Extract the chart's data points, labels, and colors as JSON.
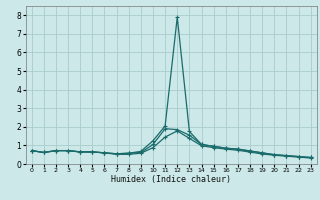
{
  "xlabel": "Humidex (Indice chaleur)",
  "bg_color": "#cce8e8",
  "grid_color": "#aacccc",
  "line_color": "#1a6b6b",
  "xlim": [
    -0.5,
    23.5
  ],
  "ylim": [
    0,
    8.5
  ],
  "xticks": [
    0,
    1,
    2,
    3,
    4,
    5,
    6,
    7,
    8,
    9,
    10,
    11,
    12,
    13,
    14,
    15,
    16,
    17,
    18,
    19,
    20,
    21,
    22,
    23
  ],
  "yticks": [
    0,
    1,
    2,
    3,
    4,
    5,
    6,
    7,
    8
  ],
  "curve1_x": [
    0,
    1,
    2,
    3,
    4,
    5,
    6,
    7,
    8,
    9,
    10,
    11,
    12,
    13,
    14,
    15,
    16,
    17,
    18,
    19,
    20,
    21,
    22,
    23
  ],
  "curve1_y": [
    0.72,
    0.62,
    0.72,
    0.72,
    0.65,
    0.65,
    0.6,
    0.55,
    0.58,
    0.62,
    1.05,
    1.9,
    1.85,
    1.55,
    1.05,
    0.95,
    0.85,
    0.8,
    0.7,
    0.6,
    0.5,
    0.45,
    0.4,
    0.35
  ],
  "curve2_x": [
    0,
    1,
    2,
    3,
    4,
    5,
    6,
    7,
    8,
    9,
    10,
    11,
    12,
    13,
    14,
    15,
    16,
    17,
    18,
    19,
    20,
    21,
    22,
    23
  ],
  "curve2_y": [
    0.72,
    0.62,
    0.72,
    0.72,
    0.65,
    0.65,
    0.6,
    0.55,
    0.58,
    0.68,
    1.25,
    2.05,
    7.9,
    1.75,
    1.05,
    0.95,
    0.85,
    0.8,
    0.7,
    0.6,
    0.5,
    0.45,
    0.4,
    0.35
  ],
  "curve3_x": [
    0,
    1,
    2,
    3,
    4,
    5,
    6,
    7,
    8,
    9,
    10,
    11,
    12,
    13,
    14,
    15,
    16,
    17,
    18,
    19,
    20,
    21,
    22,
    23
  ],
  "curve3_y": [
    0.72,
    0.62,
    0.72,
    0.72,
    0.65,
    0.65,
    0.6,
    0.52,
    0.52,
    0.58,
    0.88,
    1.45,
    1.78,
    1.38,
    0.98,
    0.88,
    0.8,
    0.74,
    0.64,
    0.54,
    0.47,
    0.42,
    0.37,
    0.32
  ],
  "marker": "+",
  "markersize": 3.5,
  "markeredgewidth": 0.8,
  "linewidth": 0.9,
  "tick_fontsize_x": 4.5,
  "tick_fontsize_y": 5.5,
  "xlabel_fontsize": 6.0
}
